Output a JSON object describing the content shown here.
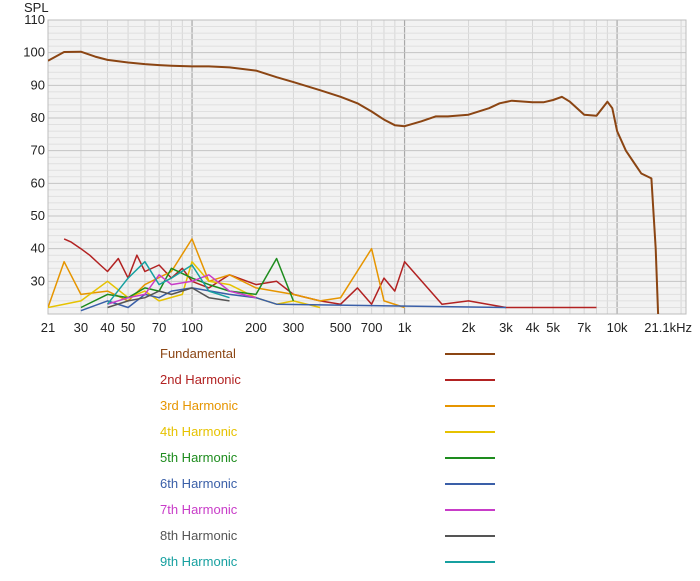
{
  "chart_data": {
    "type": "line",
    "title": "",
    "xlabel": "",
    "ylabel": "SPL",
    "xscale": "log",
    "xlim": [
      21,
      21100
    ],
    "ylim": [
      20,
      110
    ],
    "grid": true,
    "legend_position": "bottom",
    "x_tick_labels": [
      {
        "value": 21,
        "label": "21"
      },
      {
        "value": 30,
        "label": "30"
      },
      {
        "value": 40,
        "label": "40"
      },
      {
        "value": 50,
        "label": "50"
      },
      {
        "value": 70,
        "label": "70"
      },
      {
        "value": 100,
        "label": "100"
      },
      {
        "value": 200,
        "label": "200"
      },
      {
        "value": 300,
        "label": "300"
      },
      {
        "value": 500,
        "label": "500"
      },
      {
        "value": 700,
        "label": "700"
      },
      {
        "value": 1000,
        "label": "1k"
      },
      {
        "value": 2000,
        "label": "2k"
      },
      {
        "value": 3000,
        "label": "3k"
      },
      {
        "value": 4000,
        "label": "4k"
      },
      {
        "value": 5000,
        "label": "5k"
      },
      {
        "value": 7000,
        "label": "7k"
      },
      {
        "value": 10000,
        "label": "10k"
      },
      {
        "value": 21100,
        "label": "21.1kHz"
      }
    ],
    "y_ticks": [
      30,
      40,
      50,
      60,
      70,
      80,
      90,
      100,
      110
    ],
    "series": [
      {
        "name": "Fundamental",
        "color": "#8B4513",
        "x": [
          21,
          25,
          30,
          35,
          40,
          50,
          60,
          70,
          80,
          100,
          120,
          150,
          200,
          250,
          300,
          400,
          500,
          600,
          700,
          800,
          900,
          1000,
          1200,
          1400,
          1600,
          2000,
          2500,
          2800,
          3200,
          4000,
          4500,
          5000,
          5500,
          6000,
          7000,
          8000,
          9000,
          9500,
          10000,
          11000,
          13000,
          14500,
          15200,
          15600
        ],
        "y": [
          97.5,
          100.2,
          100.3,
          98.8,
          97.8,
          97,
          96.5,
          96.2,
          96,
          95.8,
          95.8,
          95.5,
          94.5,
          92.5,
          91,
          88.5,
          86.5,
          84.5,
          82,
          79.5,
          77.8,
          77.5,
          79,
          80.5,
          80.5,
          81,
          83,
          84.5,
          85.3,
          84.8,
          84.8,
          85.5,
          86.5,
          85,
          81,
          80.7,
          85,
          83,
          76,
          70,
          63,
          61.5,
          40,
          20
        ]
      },
      {
        "name": "2nd Harmonic",
        "color": "#B22222",
        "x": [
          25,
          27,
          30,
          33,
          37,
          40,
          45,
          50,
          55,
          60,
          70,
          80,
          90,
          100,
          120,
          150,
          200,
          250,
          300,
          400,
          500,
          600,
          700,
          800,
          900,
          1000,
          1500,
          2000,
          3000,
          8000
        ],
        "y": [
          43,
          42,
          40,
          38,
          35,
          33,
          37,
          31,
          38,
          33,
          35,
          31,
          34,
          30,
          28,
          32,
          29,
          30,
          26,
          24,
          23,
          28,
          23,
          31,
          27,
          36,
          23,
          24,
          22,
          22
        ]
      },
      {
        "name": "3rd Harmonic",
        "color": "#E69500",
        "x": [
          21,
          25,
          30,
          40,
          50,
          60,
          80,
          100,
          120,
          150,
          200,
          300,
          400,
          500,
          700,
          800,
          1000
        ],
        "y": [
          22,
          36,
          26,
          27,
          24,
          29,
          33,
          43,
          30,
          32,
          28,
          26,
          24,
          25,
          40,
          24,
          22
        ]
      },
      {
        "name": "4th Harmonic",
        "color": "#E6C200",
        "x": [
          21,
          30,
          40,
          50,
          60,
          70,
          90,
          100,
          120,
          150,
          200,
          250,
          300,
          400
        ],
        "y": [
          22,
          24,
          30,
          25,
          27,
          24,
          26,
          36,
          30,
          29,
          25,
          23,
          24,
          22
        ]
      },
      {
        "name": "5th Harmonic",
        "color": "#1E8C1E",
        "x": [
          30,
          40,
          50,
          60,
          70,
          80,
          100,
          120,
          150,
          200,
          250,
          300
        ],
        "y": [
          22,
          26,
          25,
          28,
          27,
          34,
          31,
          29,
          27,
          26,
          37,
          24
        ]
      },
      {
        "name": "6th Harmonic",
        "color": "#3A5FA8",
        "x": [
          30,
          40,
          50,
          60,
          70,
          80,
          100,
          150,
          200,
          250,
          3000
        ],
        "y": [
          21,
          24,
          22,
          26,
          25,
          27,
          28,
          26,
          25,
          23,
          22
        ]
      },
      {
        "name": "7th Harmonic",
        "color": "#C83CC8",
        "x": [
          40,
          50,
          60,
          70,
          80,
          100,
          120,
          150,
          200
        ],
        "y": [
          23,
          25,
          26,
          32,
          29,
          30,
          32,
          27,
          25
        ]
      },
      {
        "name": "8th Harmonic",
        "color": "#555555",
        "x": [
          40,
          50,
          60,
          70,
          80,
          100,
          120,
          150
        ],
        "y": [
          22,
          24,
          25,
          27,
          26,
          28,
          25,
          24
        ]
      },
      {
        "name": "9th Harmonic",
        "color": "#17A0A0",
        "x": [
          40,
          50,
          60,
          70,
          80,
          100,
          120,
          150
        ],
        "y": [
          23,
          31,
          36,
          29,
          31,
          35,
          27,
          25
        ]
      }
    ]
  }
}
